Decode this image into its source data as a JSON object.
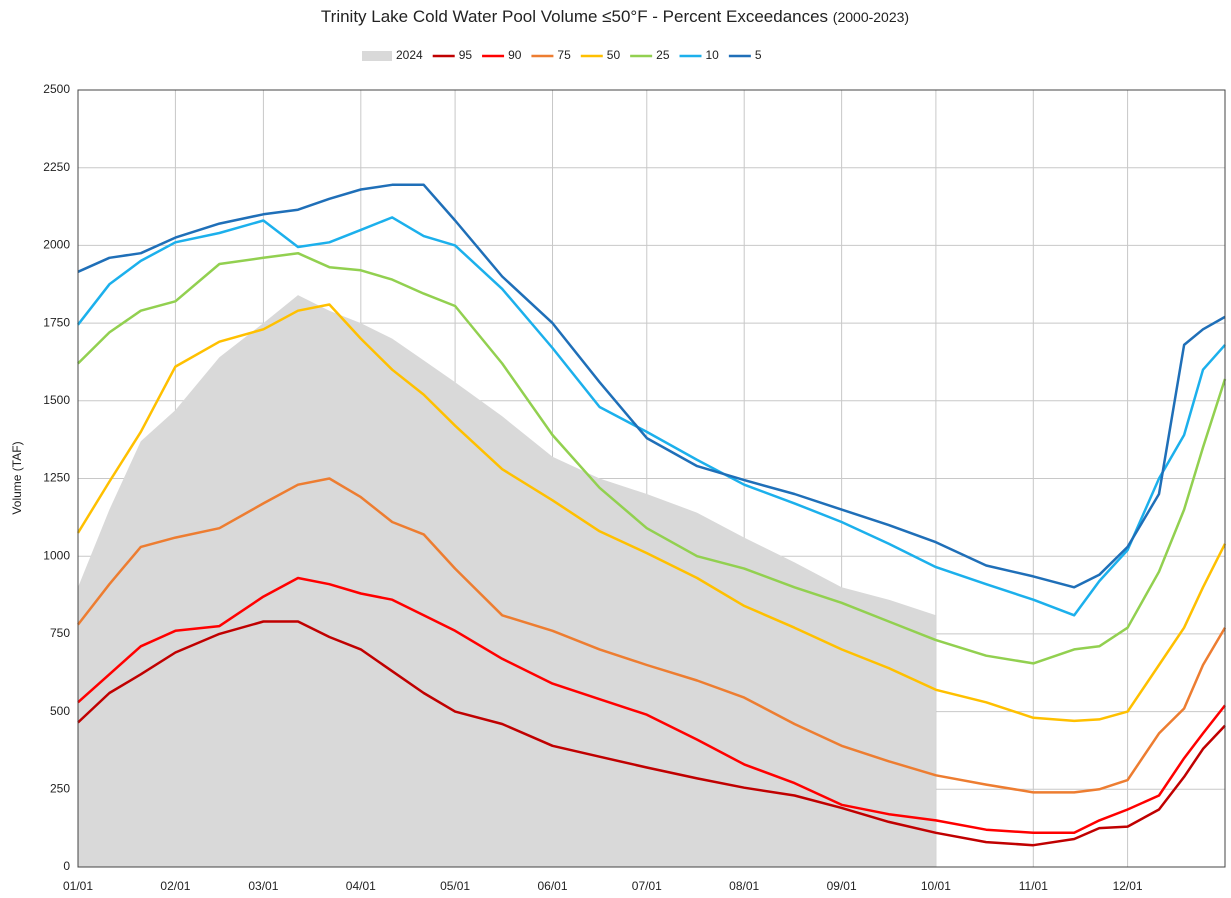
{
  "chart_data": {
    "type": "line",
    "title": "Trinity Lake Cold Water Pool Volume ≤50°F - Percent Exceedances",
    "subtitle": "(2000-2023)",
    "y_label": "Volume (TAF)",
    "grid": true,
    "legend": "top",
    "xlim": [
      0,
      365
    ],
    "ylim": [
      0,
      2500
    ],
    "yticks": [
      0,
      250,
      500,
      750,
      1000,
      1250,
      1500,
      1750,
      2000,
      2250,
      2500
    ],
    "xticks": [
      {
        "value": 0,
        "label": "01/01"
      },
      {
        "value": 31,
        "label": "02/01"
      },
      {
        "value": 59,
        "label": "03/01"
      },
      {
        "value": 90,
        "label": "04/01"
      },
      {
        "value": 120,
        "label": "05/01"
      },
      {
        "value": 151,
        "label": "06/01"
      },
      {
        "value": 181,
        "label": "07/01"
      },
      {
        "value": 212,
        "label": "08/01"
      },
      {
        "value": 243,
        "label": "09/01"
      },
      {
        "value": 273,
        "label": "10/01"
      },
      {
        "value": 304,
        "label": "11/01"
      },
      {
        "value": 334,
        "label": "12/01"
      }
    ],
    "x": [
      0,
      10,
      20,
      31,
      45,
      59,
      70,
      80,
      90,
      100,
      110,
      120,
      135,
      151,
      166,
      181,
      197,
      212,
      228,
      243,
      258,
      273,
      289,
      304,
      317,
      325,
      334,
      344,
      352,
      358,
      365
    ],
    "series": [
      {
        "name": "2024",
        "color": "#d9d9d9",
        "kind": "area",
        "values": [
          900,
          1150,
          1370,
          1470,
          1640,
          1750,
          1840,
          1790,
          1750,
          1700,
          1630,
          1560,
          1450,
          1320,
          1250,
          1200,
          1140,
          1060,
          980,
          900,
          860,
          810,
          null,
          null,
          null,
          null,
          null,
          null,
          null,
          null,
          null
        ]
      },
      {
        "name": "95",
        "color": "#c00000",
        "values": [
          465,
          560,
          620,
          690,
          750,
          790,
          790,
          740,
          700,
          630,
          560,
          500,
          460,
          390,
          355,
          320,
          285,
          255,
          230,
          190,
          145,
          110,
          80,
          70,
          90,
          125,
          130,
          185,
          290,
          380,
          455
        ]
      },
      {
        "name": "90",
        "color": "#ff0000",
        "values": [
          530,
          620,
          710,
          760,
          775,
          870,
          930,
          910,
          880,
          860,
          810,
          760,
          670,
          590,
          540,
          490,
          410,
          330,
          270,
          200,
          170,
          150,
          120,
          110,
          110,
          150,
          185,
          230,
          350,
          430,
          520
        ]
      },
      {
        "name": "75",
        "color": "#ed7d31",
        "values": [
          780,
          910,
          1030,
          1060,
          1090,
          1170,
          1230,
          1250,
          1190,
          1110,
          1070,
          960,
          810,
          760,
          700,
          650,
          600,
          545,
          460,
          390,
          340,
          295,
          265,
          240,
          240,
          250,
          280,
          430,
          510,
          650,
          770
        ]
      },
      {
        "name": "50",
        "color": "#ffc000",
        "values": [
          1075,
          1240,
          1400,
          1610,
          1690,
          1730,
          1790,
          1810,
          1700,
          1600,
          1520,
          1420,
          1280,
          1180,
          1080,
          1010,
          930,
          840,
          770,
          700,
          640,
          570,
          530,
          480,
          470,
          475,
          500,
          650,
          770,
          900,
          1040
        ]
      },
      {
        "name": "25",
        "color": "#92d050",
        "values": [
          1620,
          1720,
          1790,
          1820,
          1940,
          1960,
          1975,
          1930,
          1920,
          1890,
          1845,
          1805,
          1620,
          1390,
          1220,
          1090,
          1000,
          960,
          900,
          850,
          790,
          730,
          680,
          655,
          700,
          710,
          770,
          950,
          1150,
          1350,
          1570
        ]
      },
      {
        "name": "10",
        "color": "#1cb0ec",
        "values": [
          1745,
          1875,
          1950,
          2010,
          2040,
          2080,
          1995,
          2010,
          2050,
          2090,
          2030,
          2000,
          1860,
          1670,
          1480,
          1400,
          1310,
          1230,
          1170,
          1110,
          1040,
          965,
          910,
          860,
          810,
          920,
          1020,
          1250,
          1390,
          1600,
          1680
        ]
      },
      {
        "name": "5",
        "color": "#1f6fb8",
        "values": [
          1915,
          1960,
          1975,
          2025,
          2070,
          2100,
          2115,
          2150,
          2180,
          2195,
          2195,
          2080,
          1900,
          1750,
          1560,
          1380,
          1290,
          1245,
          1200,
          1150,
          1100,
          1045,
          970,
          935,
          900,
          940,
          1030,
          1200,
          1680,
          1730,
          1770
        ]
      }
    ]
  }
}
